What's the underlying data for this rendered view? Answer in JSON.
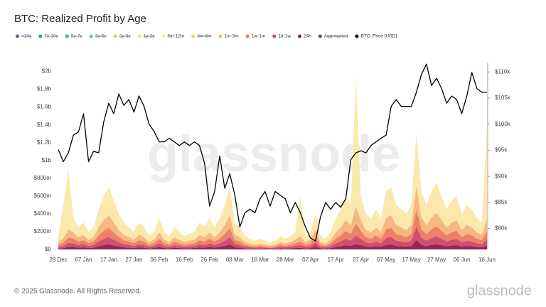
{
  "chart_data": {
    "type": "stacked-area-line",
    "title": "BTC: Realized Profit by Age",
    "watermark": "glassnode",
    "categories": [
      "28 Dec",
      null,
      null,
      null,
      null,
      "07 Jan",
      null,
      null,
      null,
      null,
      "17 Jan",
      null,
      null,
      null,
      null,
      "27 Jan",
      null,
      null,
      null,
      null,
      "06 Feb",
      null,
      null,
      null,
      null,
      "16 Feb",
      null,
      null,
      null,
      null,
      "26 Feb",
      null,
      null,
      null,
      null,
      "08 Mar",
      null,
      null,
      null,
      null,
      "18 Mar",
      null,
      null,
      null,
      null,
      "28 Mar",
      null,
      null,
      null,
      null,
      "07 Apr",
      null,
      null,
      null,
      null,
      "17 Apr",
      null,
      null,
      null,
      null,
      "27 Apr",
      null,
      null,
      null,
      null,
      "07 May",
      null,
      null,
      null,
      null,
      "17 May",
      null,
      null,
      null,
      null,
      "27 May",
      null,
      null,
      null,
      null,
      "06 Jun",
      null,
      null,
      null,
      null,
      "16 Jun"
    ],
    "ylim": [
      0,
      2100
    ],
    "yticks": [
      {
        "value": 0,
        "label": "$0"
      },
      {
        "value": 200,
        "label": "$200m"
      },
      {
        "value": 400,
        "label": "$400m"
      },
      {
        "value": 600,
        "label": "$600m"
      },
      {
        "value": 800,
        "label": "$800m"
      },
      {
        "value": 1000,
        "label": "$1b"
      },
      {
        "value": 1200,
        "label": "$1.2b"
      },
      {
        "value": 1400,
        "label": "$1.4b"
      },
      {
        "value": 1600,
        "label": "$1.6b"
      },
      {
        "value": 1800,
        "label": "$1.8b"
      },
      {
        "value": 2000,
        "label": "$2b"
      }
    ],
    "y2lim": [
      76,
      111.8
    ],
    "y2ticks": [
      {
        "value": 80,
        "label": "$80k"
      },
      {
        "value": 85,
        "label": "$85k"
      },
      {
        "value": 90,
        "label": "$90k"
      },
      {
        "value": 95,
        "label": "$95k"
      },
      {
        "value": 100,
        "label": "$100k"
      },
      {
        "value": 105,
        "label": "$105k"
      },
      {
        "value": 110,
        "label": "$110k"
      }
    ],
    "grid": false,
    "series": [
      {
        "name": ">10y",
        "color": "#5b63b8",
        "hidden": true
      },
      {
        "name": "7y-10y",
        "color": "#4a8cc4",
        "hidden": true
      },
      {
        "name": "5y-7y",
        "color": "#40adc0",
        "hidden": true
      },
      {
        "name": "3y-5y",
        "color": "#6cc39a",
        "hidden": true
      },
      {
        "name": "2y-3y",
        "color": "#b5d978",
        "hidden": true
      },
      {
        "name": "1y-2y",
        "color": "#efe58a",
        "hidden": true
      },
      {
        "name": "6m-12m",
        "color": "#fbe8a6",
        "values": [
          68,
          375,
          675,
          158,
          112,
          135,
          90,
          112,
          202,
          270,
          315,
          248,
          180,
          135,
          112,
          90,
          135,
          112,
          68,
          90,
          158,
          90,
          68,
          112,
          90,
          68,
          81,
          90,
          135,
          112,
          158,
          112,
          158,
          225,
          315,
          135,
          112,
          68,
          54,
          45,
          54,
          45,
          36,
          45,
          68,
          54,
          68,
          90,
          450,
          68,
          90,
          180,
          68,
          54,
          90,
          158,
          202,
          270,
          225,
          1463,
          270,
          180,
          158,
          202,
          158,
          292,
          315,
          225,
          202,
          180,
          225,
          585,
          292,
          225,
          292,
          338,
          270,
          202,
          248,
          270,
          180,
          225,
          202,
          158,
          135,
          1050
        ]
      },
      {
        "name": "3m-6m",
        "color": "#f6d27a",
        "hidden": true
      },
      {
        "name": "1m-3m",
        "color": "#f5b47a",
        "values": [
          30,
          50,
          90,
          70,
          50,
          60,
          40,
          50,
          90,
          120,
          140,
          110,
          80,
          60,
          50,
          40,
          60,
          50,
          30,
          40,
          70,
          40,
          30,
          50,
          40,
          30,
          36,
          40,
          60,
          50,
          70,
          50,
          70,
          100,
          140,
          60,
          50,
          30,
          24,
          20,
          24,
          20,
          16,
          20,
          30,
          24,
          30,
          40,
          60,
          30,
          40,
          80,
          30,
          24,
          40,
          70,
          90,
          120,
          100,
          195,
          120,
          80,
          70,
          90,
          70,
          130,
          140,
          100,
          90,
          80,
          100,
          260,
          130,
          100,
          130,
          150,
          120,
          90,
          110,
          120,
          80,
          100,
          90,
          70,
          60,
          140
        ]
      },
      {
        "name": "1w-1m",
        "color": "#ec7a60",
        "values": [
          22,
          35,
          63,
          52,
          38,
          45,
          30,
          38,
          68,
          90,
          105,
          82,
          60,
          45,
          38,
          30,
          45,
          38,
          22,
          30,
          52,
          30,
          22,
          38,
          30,
          22,
          27,
          30,
          45,
          38,
          52,
          38,
          52,
          75,
          105,
          45,
          38,
          22,
          18,
          15,
          18,
          15,
          12,
          15,
          22,
          18,
          22,
          30,
          42,
          22,
          30,
          60,
          22,
          18,
          30,
          52,
          68,
          90,
          75,
          136,
          90,
          60,
          52,
          68,
          52,
          98,
          105,
          75,
          68,
          60,
          75,
          195,
          98,
          75,
          98,
          112,
          90,
          68,
          82,
          90,
          60,
          75,
          68,
          52,
          45,
          98
        ]
      },
      {
        "name": "1d-1w",
        "color": "#cf4569",
        "values": [
          18,
          25,
          45,
          42,
          30,
          36,
          24,
          30,
          54,
          72,
          84,
          66,
          48,
          36,
          30,
          24,
          36,
          30,
          18,
          24,
          42,
          24,
          18,
          30,
          24,
          18,
          22,
          24,
          36,
          30,
          42,
          30,
          42,
          60,
          84,
          36,
          30,
          18,
          14,
          12,
          14,
          12,
          10,
          12,
          18,
          14,
          18,
          24,
          30,
          18,
          24,
          48,
          18,
          14,
          24,
          42,
          54,
          72,
          60,
          98,
          72,
          48,
          42,
          54,
          42,
          78,
          84,
          60,
          54,
          48,
          60,
          156,
          78,
          60,
          78,
          90,
          72,
          54,
          66,
          72,
          48,
          60,
          54,
          42,
          36,
          70
        ]
      },
      {
        "name": "24h",
        "color": "#8c1a4c",
        "values": [
          12,
          15,
          27,
          28,
          20,
          24,
          16,
          20,
          36,
          48,
          56,
          44,
          32,
          24,
          20,
          16,
          24,
          20,
          12,
          16,
          28,
          16,
          12,
          20,
          16,
          12,
          14,
          16,
          24,
          20,
          28,
          20,
          28,
          40,
          56,
          24,
          20,
          12,
          10,
          8,
          10,
          8,
          6,
          8,
          12,
          10,
          12,
          16,
          18,
          12,
          16,
          32,
          12,
          10,
          16,
          28,
          36,
          48,
          40,
          58,
          48,
          32,
          28,
          36,
          28,
          52,
          56,
          40,
          36,
          32,
          40,
          104,
          52,
          40,
          52,
          60,
          48,
          36,
          44,
          48,
          32,
          40,
          36,
          28,
          24,
          42
        ]
      },
      {
        "name": "Aggregated",
        "color": "#555555",
        "hidden": true
      },
      {
        "name": "BTC: Price [USD]",
        "color": "#000000",
        "axis": "y2",
        "values": [
          95.1,
          92.8,
          94.5,
          97.9,
          98.5,
          102.0,
          92.8,
          94.8,
          94.5,
          100.4,
          104.0,
          102.0,
          105.8,
          103.6,
          104.7,
          102.3,
          105.4,
          103.4,
          100.0,
          98.6,
          96.6,
          96.6,
          97.3,
          96.6,
          95.9,
          96.6,
          95.9,
          96.6,
          95.9,
          92.5,
          84.3,
          87.1,
          93.9,
          87.7,
          90.5,
          86.4,
          80.3,
          83.0,
          83.7,
          83.0,
          85.7,
          87.1,
          84.3,
          87.1,
          86.4,
          85.7,
          83.0,
          85.0,
          83.0,
          80.3,
          78.2,
          77.6,
          82.3,
          85.0,
          83.7,
          85.0,
          84.1,
          85.7,
          93.2,
          94.5,
          94.9,
          94.5,
          95.9,
          96.6,
          97.3,
          97.9,
          103.4,
          104.7,
          103.4,
          103.4,
          103.4,
          106.1,
          109.5,
          111.5,
          107.4,
          108.8,
          106.8,
          104.0,
          105.4,
          104.7,
          102.0,
          105.4,
          109.9,
          106.8,
          106.1,
          106.1
        ]
      }
    ]
  },
  "footer": {
    "copyright": "© 2025 Glassnode. All Rights Reserved.",
    "brand": "glassnode"
  }
}
